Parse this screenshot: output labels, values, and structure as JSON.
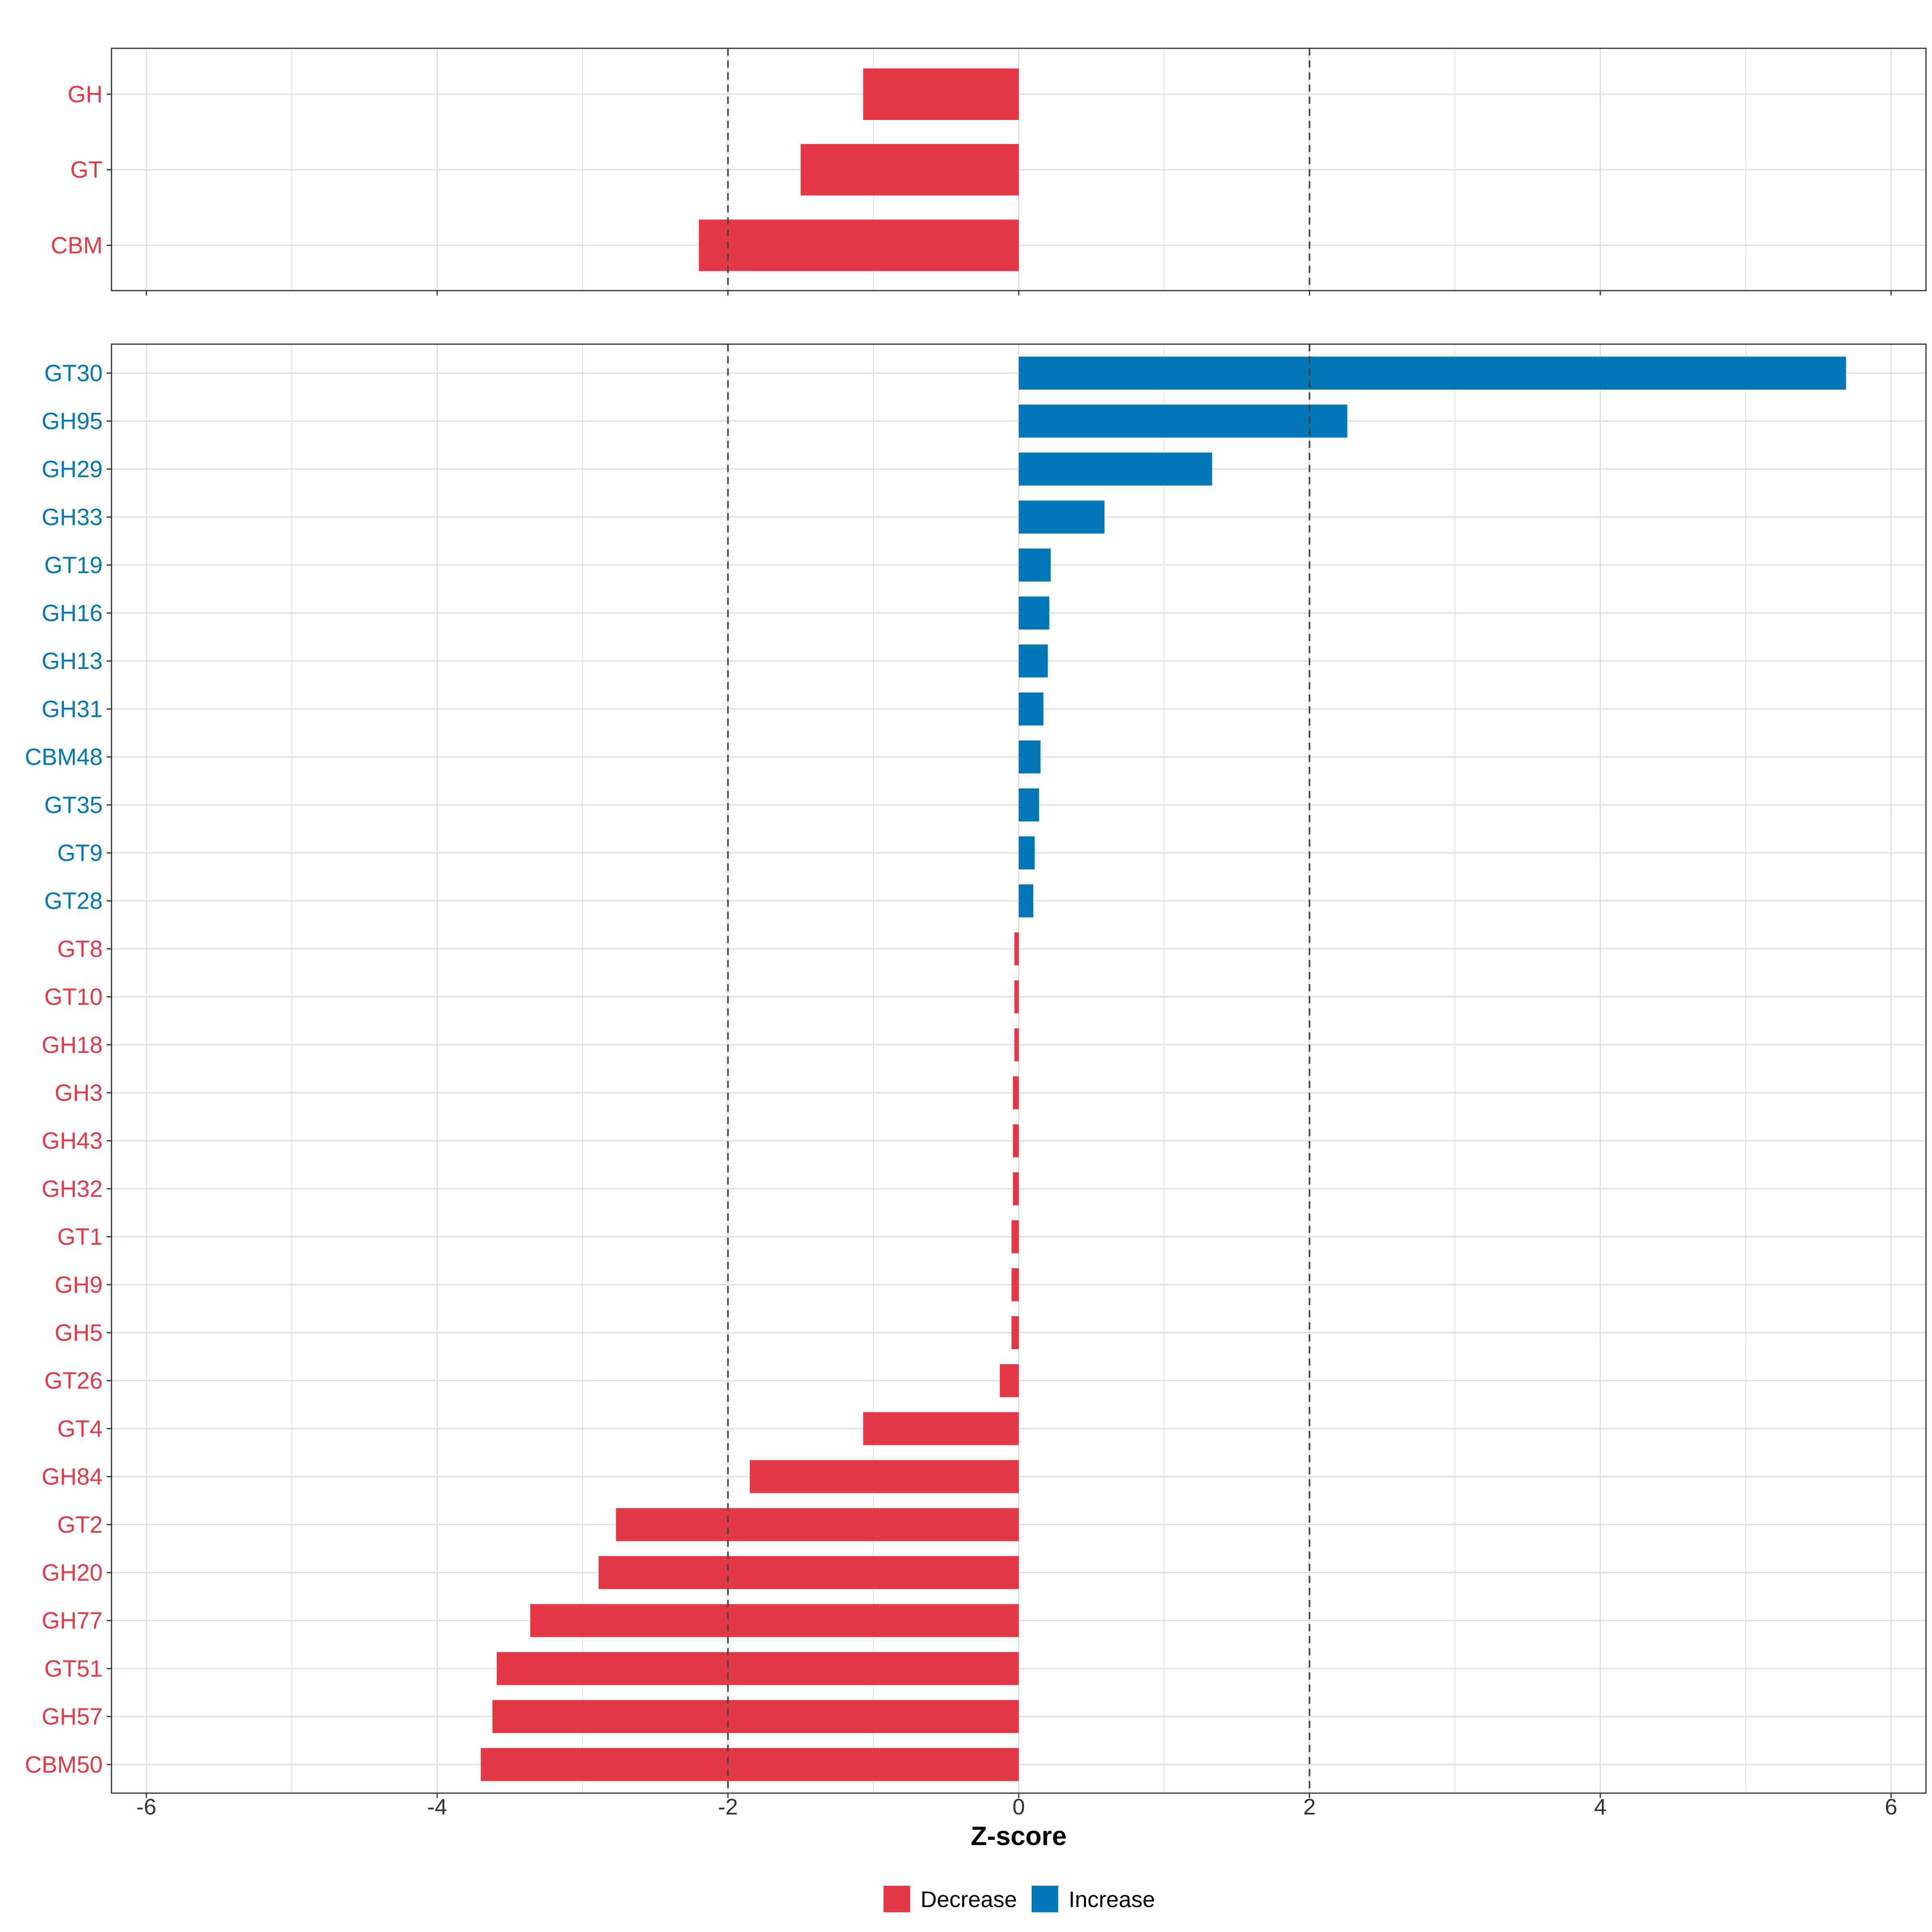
{
  "chart_data": {
    "type": "bar",
    "orientation": "horizontal",
    "xlabel": "Z-score",
    "xlim": [
      -6.24,
      6.24
    ],
    "xticks": [
      -6,
      -4,
      -2,
      0,
      2,
      4,
      6
    ],
    "reference_lines": [
      -2,
      2
    ],
    "grid": true,
    "legend": {
      "position": "bottom",
      "entries": [
        {
          "label": "Decrease",
          "color": "#E63946"
        },
        {
          "label": "Increase",
          "color": "#0077B6"
        }
      ]
    },
    "panels": [
      {
        "name": "class",
        "categories": [
          "GH",
          "GT",
          "CBM"
        ],
        "values": [
          -1.07,
          -1.5,
          -2.2
        ]
      },
      {
        "name": "family",
        "categories": [
          "GT30",
          "GH95",
          "GH29",
          "GH33",
          "GT19",
          "GH16",
          "GH13",
          "GH31",
          "CBM48",
          "GT35",
          "GT9",
          "GT28",
          "GT8",
          "GT10",
          "GH18",
          "GH3",
          "GH43",
          "GH32",
          "GT1",
          "GH9",
          "GH5",
          "GT26",
          "GT4",
          "GH84",
          "GT2",
          "GH20",
          "GH77",
          "GT51",
          "GH57",
          "CBM50"
        ],
        "values": [
          5.69,
          2.26,
          1.33,
          0.59,
          0.22,
          0.21,
          0.2,
          0.17,
          0.15,
          0.14,
          0.11,
          0.1,
          -0.03,
          -0.03,
          -0.03,
          -0.04,
          -0.04,
          -0.04,
          -0.05,
          -0.05,
          -0.05,
          -0.13,
          -1.07,
          -1.85,
          -2.77,
          -2.89,
          -3.36,
          -3.59,
          -3.62,
          -3.7
        ]
      }
    ]
  },
  "colors": {
    "decrease": "#E63946",
    "increase": "#0077B6",
    "grid": "#DEDEDE",
    "panel_border": "#333333",
    "refline": "#444444",
    "text_dark": "#333333",
    "title": "#000000"
  }
}
